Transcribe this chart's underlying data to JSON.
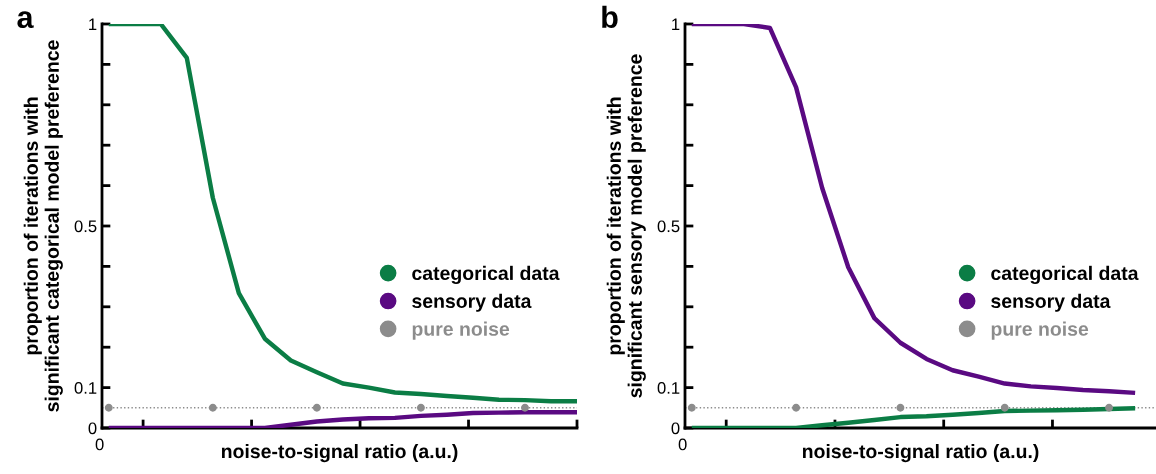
{
  "chart_data": [
    {
      "type": "line",
      "title": "a",
      "xlabel": "noise-to-signal ratio (a.u.)",
      "ylabel": "proportion of iterations with\nsignificant categorical model preference",
      "categories": [
        null,
        null,
        null,
        null,
        null,
        null,
        null,
        null,
        null,
        null,
        null,
        null,
        null,
        null,
        null,
        null,
        null,
        null,
        null
      ],
      "annotations": [
        "0"
      ],
      "ylim": [
        0,
        1
      ],
      "yticks": [
        0,
        0.1,
        {
          "value": 0.2,
          "label": null
        },
        {
          "value": 0.3,
          "label": null
        },
        {
          "value": 0.4,
          "label": null
        },
        0.5,
        {
          "value": 0.6,
          "label": null
        },
        {
          "value": 0.7,
          "label": null
        },
        {
          "value": 0.8,
          "label": null
        },
        {
          "value": 0.9,
          "label": null
        },
        1
      ],
      "grid": false,
      "legend": "right",
      "marker": "none",
      "line_style": "solid",
      "ref_lines": [
        {
          "axis": "y",
          "value": 0.05,
          "color": "#8c8c8c",
          "line_style": "dotted"
        }
      ],
      "series": [
        {
          "name": "categorical data",
          "color": "#0b7d45",
          "values": [
            1,
            1,
            1,
            0.916,
            0.57,
            0.334,
            0.221,
            0.167,
            0.138,
            0.11,
            0.1,
            0.088,
            0.084,
            0.079,
            0.075,
            0.07,
            0.069,
            0.066,
            0.066
          ]
        },
        {
          "name": "sensory data",
          "color": "#5a0a82",
          "values": [
            0,
            0,
            0,
            0,
            0,
            0,
            0,
            0.008,
            0.016,
            0.021,
            0.024,
            0.025,
            0.03,
            0.033,
            0.037,
            0.038,
            0.039,
            0.039,
            0.039
          ]
        },
        {
          "name": "pure noise",
          "type": "scatter",
          "marker": "circle",
          "color": "#8c8c8c",
          "values": [
            0.05,
            null,
            null,
            null,
            0.05,
            null,
            null,
            null,
            0.05,
            null,
            null,
            null,
            0.05,
            null,
            null,
            null,
            0.05,
            null,
            null
          ]
        }
      ]
    },
    {
      "type": "line",
      "title": "b",
      "xlabel": "noise-to-signal ratio (a.u.)",
      "ylabel": "proportion of iterations with\nsignificant sensory model preference",
      "categories": [
        null,
        null,
        null,
        null,
        null,
        null,
        null,
        null,
        null,
        null,
        null,
        null,
        null,
        null,
        null,
        null,
        null,
        null
      ],
      "annotations": [
        "0"
      ],
      "ylim": [
        0,
        1
      ],
      "yticks": [
        0,
        0.1,
        {
          "value": 0.2,
          "label": null
        },
        {
          "value": 0.3,
          "label": null
        },
        {
          "value": 0.4,
          "label": null
        },
        0.5,
        {
          "value": 0.6,
          "label": null
        },
        {
          "value": 0.7,
          "label": null
        },
        {
          "value": 0.8,
          "label": null
        },
        {
          "value": 0.9,
          "label": null
        },
        1
      ],
      "grid": false,
      "legend": "right",
      "marker": "none",
      "line_style": "solid",
      "ref_lines": [
        {
          "axis": "y",
          "value": 0.05,
          "color": "#8c8c8c",
          "line_style": "dotted"
        }
      ],
      "series": [
        {
          "name": "categorical data",
          "color": "#0b7d45",
          "values": [
            0,
            0,
            0,
            0,
            0,
            0.007,
            0.013,
            0.02,
            0.027,
            0.029,
            0.033,
            0.037,
            0.042,
            0.043,
            0.044,
            0.045,
            0.047,
            0.049
          ]
        },
        {
          "name": "sensory data",
          "color": "#5a0a82",
          "values": [
            1,
            1,
            1,
            0.99,
            0.843,
            0.594,
            0.398,
            0.272,
            0.211,
            0.171,
            0.143,
            0.127,
            0.11,
            0.103,
            0.099,
            0.094,
            0.091,
            0.087
          ]
        },
        {
          "name": "pure noise",
          "type": "scatter",
          "marker": "circle",
          "color": "#8c8c8c",
          "values": [
            0.05,
            null,
            null,
            null,
            0.05,
            null,
            null,
            null,
            0.05,
            null,
            null,
            null,
            0.05,
            null,
            null,
            null,
            0.05,
            null
          ]
        }
      ]
    }
  ]
}
